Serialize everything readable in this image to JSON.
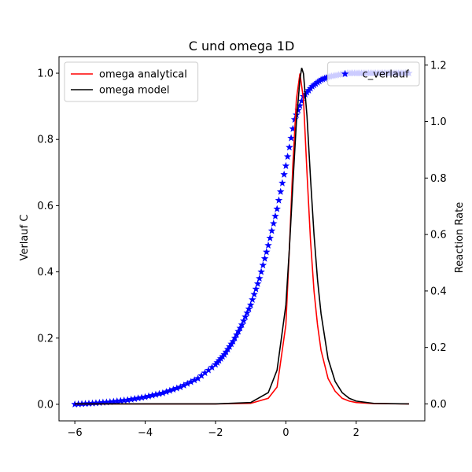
{
  "chart_data": {
    "type": "line",
    "title": "C und omega 1D",
    "xlabel": "",
    "ylabel_left": "Verlauf C",
    "ylabel_right": "Reaction Rate",
    "xlim": [
      -6.45,
      3.95
    ],
    "ylim_left": [
      -0.05,
      1.05
    ],
    "ylim_right": [
      -0.06,
      1.23
    ],
    "x_ticks": [
      -6,
      -4,
      -2,
      0,
      2
    ],
    "y_ticks_left": [
      0.0,
      0.2,
      0.4,
      0.6,
      0.8,
      1.0
    ],
    "y_ticks_right": [
      0.0,
      0.2,
      0.4,
      0.6,
      0.8,
      1.0,
      1.2
    ],
    "grid": false,
    "colors": {
      "left_label": "#0000ff",
      "right_label": "#ff0000"
    },
    "series": [
      {
        "name": "c_verlauf",
        "axis": "left",
        "style": "star-markers",
        "color": "#0000ff",
        "x": [
          -6.0,
          -5.5,
          -5.0,
          -4.5,
          -4.0,
          -3.5,
          -3.0,
          -2.5,
          -2.0,
          -1.75,
          -1.5,
          -1.25,
          -1.0,
          -0.75,
          -0.5,
          -0.25,
          0.0,
          0.25,
          0.5,
          0.75,
          1.0,
          1.25,
          1.5,
          1.75,
          2.0,
          2.25,
          2.5,
          2.75,
          3.0,
          3.25,
          3.5
        ],
        "y": [
          0.0,
          0.003,
          0.007,
          0.013,
          0.022,
          0.034,
          0.052,
          0.078,
          0.12,
          0.15,
          0.19,
          0.24,
          0.3,
          0.38,
          0.48,
          0.59,
          0.72,
          0.86,
          0.93,
          0.96,
          0.98,
          0.99,
          0.995,
          1.0,
          1.0,
          1.0,
          1.0,
          1.0,
          1.0,
          1.0,
          1.0
        ]
      },
      {
        "name": "omega analytical",
        "axis": "right",
        "style": "line",
        "color": "#ff0000",
        "x": [
          -6.0,
          -2.0,
          -1.0,
          -0.5,
          -0.25,
          0.0,
          0.1,
          0.2,
          0.3,
          0.4,
          0.5,
          0.6,
          0.7,
          0.8,
          0.9,
          1.0,
          1.2,
          1.4,
          1.6,
          1.8,
          2.0,
          2.5,
          3.5
        ],
        "y": [
          0.0,
          0.0,
          0.002,
          0.02,
          0.06,
          0.28,
          0.55,
          0.85,
          1.08,
          1.17,
          1.08,
          0.82,
          0.58,
          0.4,
          0.28,
          0.19,
          0.09,
          0.045,
          0.02,
          0.01,
          0.005,
          0.001,
          0.0
        ]
      },
      {
        "name": "omega model",
        "axis": "right",
        "style": "line",
        "color": "#000000",
        "x": [
          -6.0,
          -2.0,
          -1.0,
          -0.5,
          -0.25,
          0.0,
          0.1,
          0.2,
          0.3,
          0.4,
          0.45,
          0.5,
          0.6,
          0.7,
          0.8,
          0.9,
          1.0,
          1.2,
          1.4,
          1.6,
          1.8,
          2.0,
          2.5,
          3.5
        ],
        "y": [
          0.0,
          0.0,
          0.005,
          0.04,
          0.12,
          0.35,
          0.55,
          0.78,
          1.0,
          1.15,
          1.19,
          1.17,
          1.02,
          0.8,
          0.6,
          0.44,
          0.32,
          0.16,
          0.08,
          0.04,
          0.02,
          0.01,
          0.002,
          0.0
        ]
      }
    ],
    "legends": [
      {
        "placement": "top-left",
        "entries": [
          "omega analytical",
          "omega model"
        ]
      },
      {
        "placement": "top-right",
        "entries": [
          "c_verlauf"
        ]
      }
    ]
  }
}
